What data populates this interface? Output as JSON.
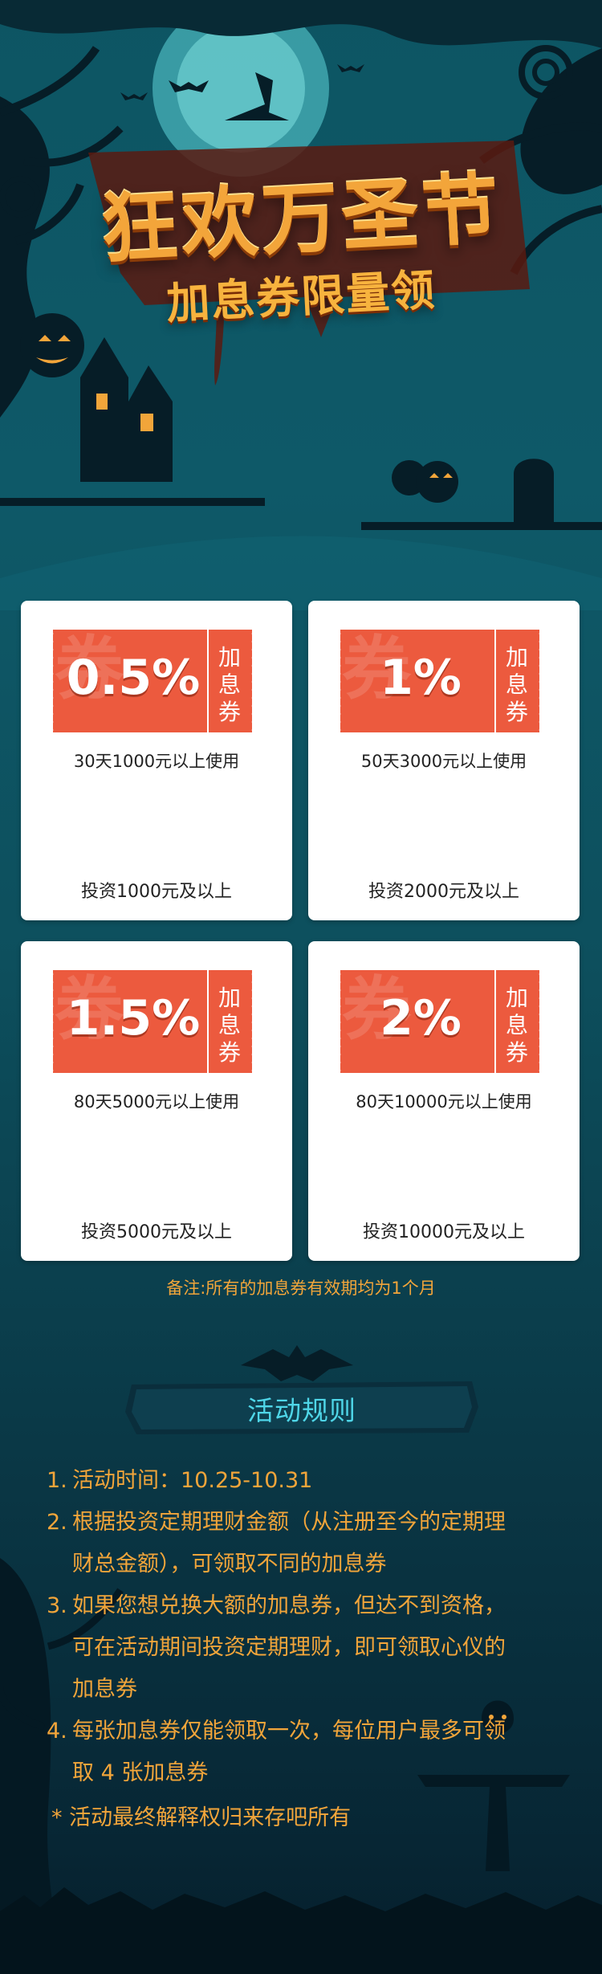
{
  "header": {
    "title": "狂欢万圣节",
    "subtitle": "加息券限量领"
  },
  "coupons": [
    {
      "watermark": "券",
      "rate": "0.5%",
      "side": [
        "加",
        "息",
        "券"
      ],
      "condition": "30天1000元以上使用",
      "invest": "投资1000元及以上"
    },
    {
      "watermark": "券",
      "rate": "1%",
      "side": [
        "加",
        "息",
        "券"
      ],
      "condition": "50天3000元以上使用",
      "invest": "投资2000元及以上"
    },
    {
      "watermark": "券",
      "rate": "1.5%",
      "side": [
        "加",
        "息",
        "券"
      ],
      "condition": "80天5000元以上使用",
      "invest": "投资5000元及以上"
    },
    {
      "watermark": "券",
      "rate": "2%",
      "side": [
        "加",
        "息",
        "券"
      ],
      "condition": "80天10000元以上使用",
      "invest": "投资10000元及以上"
    }
  ],
  "note": "备注:所有的加息券有效期均为1个月",
  "rules": {
    "title": "活动规则",
    "items": [
      {
        "num": "1.",
        "lines": [
          "活动时间：10.25-10.31"
        ]
      },
      {
        "num": "2.",
        "lines": [
          "根据投资定期理财金额（从注册至今的定期理",
          "财总金额），可领取不同的加息券"
        ]
      },
      {
        "num": "3.",
        "lines": [
          "如果您想兑换大额的加息券，但达不到资格，",
          "可在活动期间投资定期理财，即可领取心仪的",
          "加息券"
        ]
      },
      {
        "num": "4.",
        "lines": [
          "每张加息券仅能领取一次，每位用户最多可领",
          "取 4 张加息券"
        ]
      }
    ],
    "footer": "* 活动最终解释权归来存吧所有"
  },
  "colors": {
    "accent_orange": "#f2a53a",
    "coupon_red": "#ec5a3e",
    "rules_title": "#4fd6e8",
    "background_teal": "#0d5563"
  }
}
